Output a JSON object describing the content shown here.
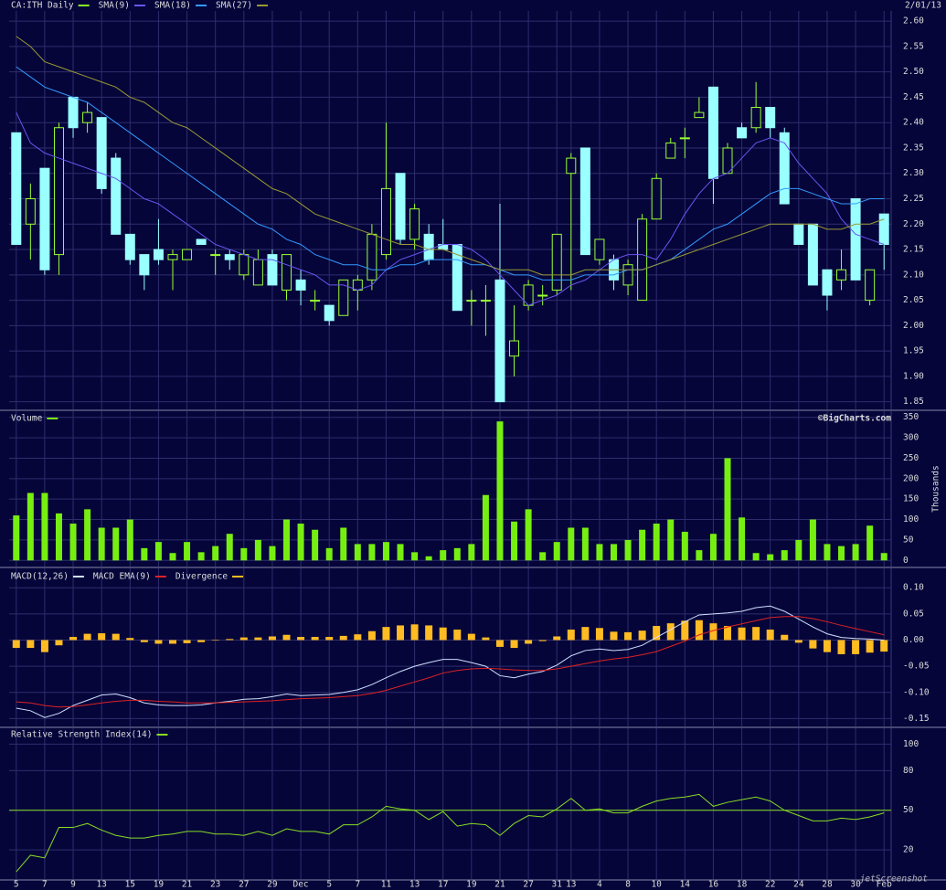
{
  "chart_data": [
    {
      "type": "candlestick",
      "title": "CA:ITH Daily",
      "date": "2/01/13",
      "color": "#88ff22",
      "up_color": "#99ff33",
      "down_color": "#99ffff",
      "open": [
        2.38,
        2.2,
        2.31,
        2.14,
        2.45,
        2.4,
        2.41,
        2.33,
        2.18,
        2.14,
        2.15,
        2.13,
        2.13,
        2.17,
        2.14,
        2.14,
        2.1,
        2.08,
        2.14,
        2.07,
        2.09,
        2.05,
        2.04,
        2.02,
        2.07,
        2.09,
        2.14,
        2.3,
        2.17,
        2.18,
        2.16,
        2.16,
        2.05,
        2.05,
        2.09,
        1.94,
        2.04,
        2.06,
        2.07,
        2.3,
        2.35,
        2.13,
        2.13,
        2.08,
        2.05,
        2.21,
        2.33,
        2.37,
        2.41,
        2.47,
        2.3,
        2.39,
        2.39,
        2.43,
        2.38,
        2.2,
        2.2,
        2.11,
        2.09,
        2.25,
        2.05,
        2.22
      ],
      "high": [
        2.38,
        2.28,
        2.31,
        2.4,
        2.45,
        2.44,
        2.41,
        2.34,
        2.18,
        2.14,
        2.21,
        2.15,
        2.15,
        2.17,
        2.15,
        2.15,
        2.15,
        2.15,
        2.15,
        2.14,
        2.11,
        2.07,
        2.04,
        2.09,
        2.1,
        2.2,
        2.4,
        2.3,
        2.24,
        2.2,
        2.21,
        2.16,
        2.07,
        2.08,
        2.24,
        2.04,
        2.09,
        2.08,
        2.18,
        2.34,
        2.35,
        2.17,
        2.14,
        2.13,
        2.22,
        2.3,
        2.37,
        2.39,
        2.45,
        2.47,
        2.36,
        2.4,
        2.48,
        2.43,
        2.39,
        2.2,
        2.2,
        2.11,
        2.15,
        2.25,
        2.11,
        2.22
      ],
      "low": [
        2.16,
        2.13,
        2.1,
        2.1,
        2.37,
        2.38,
        2.26,
        2.18,
        2.12,
        2.07,
        2.12,
        2.07,
        2.13,
        2.16,
        2.1,
        2.11,
        2.09,
        2.08,
        2.08,
        2.05,
        2.04,
        2.03,
        2.0,
        2.02,
        2.03,
        2.07,
        2.13,
        2.16,
        2.15,
        2.12,
        2.15,
        2.03,
        2.0,
        1.98,
        1.85,
        1.9,
        2.03,
        2.04,
        2.06,
        2.07,
        2.14,
        2.12,
        2.07,
        2.06,
        2.05,
        2.21,
        2.33,
        2.33,
        2.41,
        2.24,
        2.3,
        2.37,
        2.38,
        2.37,
        2.24,
        2.16,
        2.08,
        2.03,
        2.07,
        2.09,
        2.04,
        2.11
      ],
      "close": [
        2.16,
        2.25,
        2.11,
        2.39,
        2.39,
        2.42,
        2.27,
        2.18,
        2.13,
        2.1,
        2.13,
        2.14,
        2.15,
        2.16,
        2.14,
        2.13,
        2.14,
        2.13,
        2.08,
        2.14,
        2.07,
        2.05,
        2.01,
        2.09,
        2.09,
        2.18,
        2.27,
        2.17,
        2.23,
        2.13,
        2.15,
        2.03,
        2.05,
        2.05,
        1.85,
        1.97,
        2.08,
        2.06,
        2.18,
        2.33,
        2.14,
        2.17,
        2.09,
        2.12,
        2.21,
        2.29,
        2.36,
        2.37,
        2.42,
        2.29,
        2.35,
        2.37,
        2.43,
        2.39,
        2.24,
        2.16,
        2.08,
        2.06,
        2.11,
        2.09,
        2.11,
        2.16
      ],
      "series": [
        {
          "name": "SMA(9)",
          "color": "#6a55f0",
          "values": [
            2.42,
            2.36,
            2.34,
            2.33,
            2.32,
            2.31,
            2.3,
            2.29,
            2.27,
            2.25,
            2.24,
            2.22,
            2.2,
            2.18,
            2.16,
            2.15,
            2.14,
            2.13,
            2.13,
            2.12,
            2.11,
            2.1,
            2.08,
            2.08,
            2.07,
            2.08,
            2.11,
            2.13,
            2.14,
            2.15,
            2.16,
            2.16,
            2.15,
            2.13,
            2.1,
            2.07,
            2.04,
            2.05,
            2.06,
            2.08,
            2.09,
            2.11,
            2.13,
            2.14,
            2.14,
            2.13,
            2.17,
            2.22,
            2.26,
            2.29,
            2.3,
            2.33,
            2.36,
            2.37,
            2.36,
            2.32,
            2.29,
            2.26,
            2.21,
            2.18,
            2.17,
            2.16
          ]
        },
        {
          "name": "SMA(18)",
          "color": "#3399ff",
          "values": [
            2.51,
            2.49,
            2.47,
            2.46,
            2.45,
            2.44,
            2.42,
            2.4,
            2.38,
            2.36,
            2.34,
            2.32,
            2.3,
            2.28,
            2.26,
            2.24,
            2.22,
            2.2,
            2.19,
            2.17,
            2.16,
            2.14,
            2.13,
            2.12,
            2.12,
            2.11,
            2.11,
            2.12,
            2.12,
            2.13,
            2.13,
            2.13,
            2.12,
            2.12,
            2.11,
            2.1,
            2.1,
            2.09,
            2.09,
            2.09,
            2.1,
            2.1,
            2.1,
            2.11,
            2.11,
            2.12,
            2.13,
            2.15,
            2.17,
            2.19,
            2.2,
            2.22,
            2.24,
            2.26,
            2.27,
            2.27,
            2.26,
            2.25,
            2.24,
            2.24,
            2.25,
            2.25
          ]
        },
        {
          "name": "SMA(27)",
          "color": "#999933",
          "values": [
            2.57,
            2.55,
            2.52,
            2.51,
            2.5,
            2.49,
            2.48,
            2.47,
            2.45,
            2.44,
            2.42,
            2.4,
            2.39,
            2.37,
            2.35,
            2.33,
            2.31,
            2.29,
            2.27,
            2.26,
            2.24,
            2.22,
            2.21,
            2.2,
            2.19,
            2.18,
            2.17,
            2.16,
            2.16,
            2.15,
            2.15,
            2.14,
            2.13,
            2.12,
            2.11,
            2.11,
            2.11,
            2.1,
            2.1,
            2.1,
            2.11,
            2.11,
            2.11,
            2.11,
            2.11,
            2.12,
            2.13,
            2.14,
            2.15,
            2.16,
            2.17,
            2.18,
            2.19,
            2.2,
            2.2,
            2.2,
            2.2,
            2.19,
            2.19,
            2.2,
            2.2,
            2.21
          ]
        }
      ],
      "ylim": [
        1.835,
        2.62
      ],
      "yticks": [
        {
          "value": 2.6,
          "label": "2.60"
        },
        2.55,
        {
          "value": 2.5,
          "label": "2.50"
        },
        2.45,
        {
          "value": 2.4,
          "label": "2.40"
        },
        2.35,
        {
          "value": 2.3,
          "label": "2.30"
        },
        2.25,
        {
          "value": 2.2,
          "label": "2.20"
        },
        2.15,
        {
          "value": 2.1,
          "label": "2.10"
        },
        2.05,
        {
          "value": 2.0,
          "label": "2.00"
        },
        1.95,
        {
          "value": 1.9,
          "label": "1.90"
        },
        1.85
      ],
      "grid": true
    },
    {
      "type": "bar",
      "title": "Volume",
      "y_label": "Thousands",
      "credit": "©BigCharts.com",
      "color": "#77ee11",
      "values": [
        110,
        165,
        165,
        115,
        90,
        125,
        80,
        80,
        100,
        30,
        45,
        18,
        45,
        20,
        35,
        65,
        30,
        50,
        35,
        100,
        90,
        75,
        30,
        80,
        40,
        40,
        45,
        40,
        20,
        10,
        25,
        30,
        40,
        160,
        340,
        95,
        125,
        20,
        45,
        80,
        80,
        40,
        40,
        50,
        75,
        90,
        100,
        70,
        25,
        65,
        250,
        105,
        18,
        15,
        25,
        50,
        100,
        40,
        35,
        40,
        85,
        18
      ],
      "ylim": [
        -15,
        365
      ],
      "yticks": [
        0,
        50,
        100,
        150,
        200,
        250,
        300,
        350
      ],
      "grid": true
    },
    {
      "type": "combo",
      "series": [
        {
          "name": "MACD(12,26)",
          "kind": "line",
          "color": "#cfe0ff",
          "values": [
            -0.13,
            -0.135,
            -0.148,
            -0.14,
            -0.125,
            -0.115,
            -0.105,
            -0.103,
            -0.11,
            -0.12,
            -0.124,
            -0.125,
            -0.125,
            -0.124,
            -0.12,
            -0.117,
            -0.113,
            -0.112,
            -0.108,
            -0.103,
            -0.106,
            -0.105,
            -0.104,
            -0.1,
            -0.095,
            -0.085,
            -0.072,
            -0.06,
            -0.05,
            -0.043,
            -0.037,
            -0.037,
            -0.043,
            -0.05,
            -0.068,
            -0.072,
            -0.065,
            -0.06,
            -0.048,
            -0.03,
            -0.02,
            -0.017,
            -0.02,
            -0.018,
            -0.01,
            0.005,
            0.02,
            0.035,
            0.048,
            0.05,
            0.052,
            0.055,
            0.062,
            0.065,
            0.055,
            0.04,
            0.025,
            0.012,
            0.005,
            0.003,
            0.002,
            0.0
          ]
        },
        {
          "name": "MACD EMA(9)",
          "kind": "line",
          "color": "#dd2222",
          "values": [
            -0.118,
            -0.12,
            -0.125,
            -0.128,
            -0.127,
            -0.124,
            -0.12,
            -0.117,
            -0.115,
            -0.115,
            -0.117,
            -0.118,
            -0.12,
            -0.12,
            -0.12,
            -0.119,
            -0.118,
            -0.117,
            -0.116,
            -0.114,
            -0.112,
            -0.111,
            -0.11,
            -0.108,
            -0.106,
            -0.102,
            -0.096,
            -0.088,
            -0.08,
            -0.072,
            -0.063,
            -0.058,
            -0.055,
            -0.054,
            -0.055,
            -0.057,
            -0.058,
            -0.058,
            -0.055,
            -0.05,
            -0.045,
            -0.04,
            -0.036,
            -0.033,
            -0.028,
            -0.022,
            -0.012,
            -0.002,
            0.01,
            0.018,
            0.025,
            0.031,
            0.037,
            0.043,
            0.045,
            0.045,
            0.041,
            0.035,
            0.028,
            0.022,
            0.016,
            0.01
          ]
        },
        {
          "name": "Divergence",
          "kind": "bar",
          "color": "#ffbb22",
          "values": [
            -0.015,
            -0.015,
            -0.023,
            -0.01,
            0.006,
            0.012,
            0.013,
            0.012,
            0.004,
            -0.004,
            -0.007,
            -0.007,
            -0.006,
            -0.004,
            -0.001,
            0.002,
            0.005,
            0.005,
            0.007,
            0.01,
            0.006,
            0.006,
            0.006,
            0.008,
            0.011,
            0.017,
            0.025,
            0.028,
            0.03,
            0.028,
            0.024,
            0.02,
            0.012,
            0.005,
            -0.013,
            -0.015,
            -0.007,
            -0.002,
            0.007,
            0.02,
            0.025,
            0.023,
            0.016,
            0.015,
            0.018,
            0.027,
            0.032,
            0.037,
            0.038,
            0.032,
            0.027,
            0.024,
            0.025,
            0.02,
            0.01,
            -0.005,
            -0.016,
            -0.023,
            -0.027,
            -0.027,
            -0.024,
            -0.022
          ]
        }
      ],
      "ylim": [
        -0.165,
        0.137
      ],
      "yticks": [
        {
          "value": 0.1,
          "label": "0.10"
        },
        0.05,
        {
          "value": 0,
          "label": "0.00"
        },
        -0.05,
        {
          "value": -0.1,
          "label": "-0.10"
        },
        -0.15
      ],
      "grid": true
    },
    {
      "type": "line",
      "title": "Relative Strength Index(14)",
      "color": "#88dd22",
      "values": [
        3.5,
        16,
        14,
        37,
        37,
        40,
        35,
        31,
        29,
        29,
        31,
        32,
        34,
        34,
        32,
        32,
        31,
        34,
        31,
        36,
        34,
        34,
        32,
        39,
        39,
        45,
        53,
        51,
        50,
        43,
        49,
        38,
        40,
        39,
        31,
        40,
        46,
        45,
        51,
        59,
        50,
        51,
        48,
        48,
        53,
        57,
        59,
        60,
        62,
        53,
        56,
        58,
        60,
        57,
        50,
        46,
        42,
        42,
        44,
        43,
        45,
        48
      ],
      "hline": 50,
      "ylim": [
        -2,
        112
      ],
      "yticks": [
        100,
        80,
        50,
        20
      ],
      "grid": true,
      "categories": [
        "5",
        null,
        "7",
        null,
        "9",
        null,
        "13",
        null,
        "15",
        null,
        "19",
        null,
        "21",
        null,
        "23",
        null,
        "27",
        null,
        "29",
        null,
        "Dec",
        null,
        "5",
        null,
        "7",
        null,
        "11",
        null,
        "13",
        null,
        "17",
        null,
        "19",
        null,
        "21",
        null,
        "27",
        null,
        "31",
        "13",
        null,
        "4",
        null,
        "8",
        null,
        "10",
        null,
        "14",
        null,
        "16",
        null,
        "18",
        null,
        "22",
        null,
        "24",
        null,
        "28",
        null,
        "30",
        null,
        "Feb"
      ]
    }
  ],
  "watermark": "jetScreenshot"
}
